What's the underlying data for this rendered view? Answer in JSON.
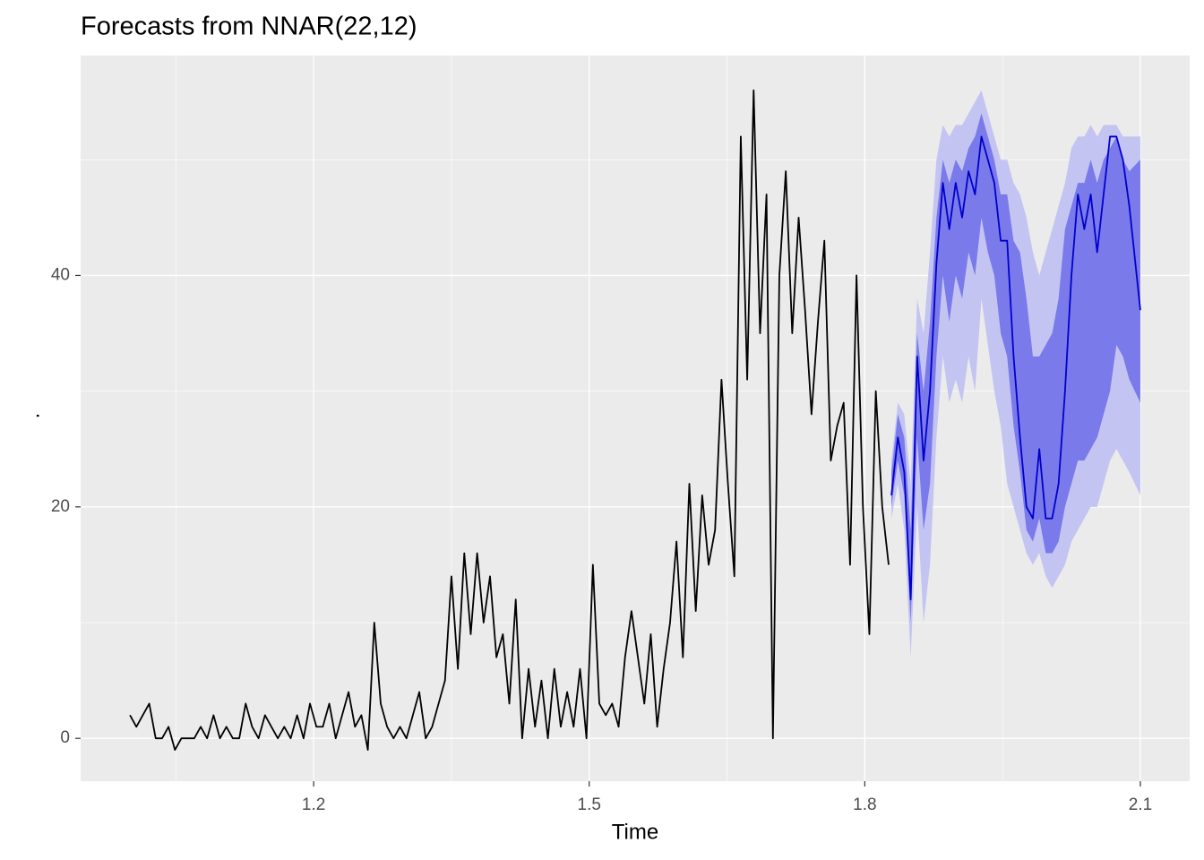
{
  "chart_data": {
    "type": "line",
    "title": "Forecasts from NNAR(22,12)",
    "x_label": "Time",
    "y_label": ".",
    "xlim": [
      0.9463,
      2.1537
    ],
    "ylim": [
      -3.7,
      59
    ],
    "xticks": [
      1.2,
      1.5,
      1.8,
      2.1
    ],
    "yticks": [
      0,
      20,
      40
    ],
    "grid": true,
    "series": [
      {
        "color": "#000000",
        "x": [
          1.0,
          1.007,
          1.014,
          1.021,
          1.028,
          1.035,
          1.042,
          1.049,
          1.056,
          1.063,
          1.07,
          1.077,
          1.084,
          1.091,
          1.098,
          1.105,
          1.112,
          1.119,
          1.126,
          1.133,
          1.14,
          1.147,
          1.154,
          1.161,
          1.168,
          1.175,
          1.182,
          1.189,
          1.196,
          1.203,
          1.21,
          1.217,
          1.224,
          1.231,
          1.238,
          1.245,
          1.252,
          1.259,
          1.266,
          1.273,
          1.28,
          1.287,
          1.294,
          1.301,
          1.308,
          1.315,
          1.322,
          1.329,
          1.336,
          1.343,
          1.35,
          1.357,
          1.364,
          1.371,
          1.378,
          1.385,
          1.392,
          1.399,
          1.406,
          1.413,
          1.42,
          1.427,
          1.434,
          1.441,
          1.448,
          1.455,
          1.462,
          1.469,
          1.476,
          1.483,
          1.49,
          1.497,
          1.504,
          1.511,
          1.518,
          1.525,
          1.532,
          1.539,
          1.546,
          1.553,
          1.56,
          1.567,
          1.574,
          1.581,
          1.588,
          1.595,
          1.602,
          1.609,
          1.616,
          1.623,
          1.63,
          1.637,
          1.644,
          1.651,
          1.658,
          1.665,
          1.672,
          1.679,
          1.686,
          1.693,
          1.7,
          1.707,
          1.714,
          1.721,
          1.728,
          1.735,
          1.742,
          1.749,
          1.756,
          1.763,
          1.77,
          1.777,
          1.784,
          1.791,
          1.798,
          1.805,
          1.812,
          1.819,
          1.826
        ],
        "values": [
          2,
          1,
          2,
          3,
          0,
          0,
          1,
          -1,
          0,
          0,
          0,
          1,
          0,
          2,
          0,
          1,
          0,
          0,
          3,
          1,
          0,
          2,
          1,
          0,
          1,
          0,
          2,
          0,
          3,
          1,
          1,
          3,
          0,
          2,
          4,
          1,
          2,
          -1,
          10,
          3,
          1,
          0,
          1,
          0,
          2,
          4,
          0,
          1,
          3,
          5,
          14,
          6,
          16,
          9,
          16,
          10,
          14,
          7,
          9,
          3,
          12,
          0,
          6,
          1,
          5,
          0,
          6,
          1,
          4,
          1,
          6,
          0,
          15,
          3,
          2,
          3,
          1,
          7,
          11,
          7,
          3,
          9,
          1,
          6,
          10,
          17,
          7,
          22,
          11,
          21,
          15,
          18,
          31,
          22,
          14,
          52,
          31,
          56,
          35,
          47,
          0,
          40,
          49,
          35,
          45,
          37,
          28,
          36,
          43,
          24,
          27,
          29,
          15,
          40,
          20,
          9,
          30,
          20,
          15
        ]
      },
      {
        "color": "#0000cc",
        "x": [
          1.829,
          1.836,
          1.843,
          1.85,
          1.857,
          1.864,
          1.871,
          1.878,
          1.885,
          1.892,
          1.899,
          1.906,
          1.913,
          1.92,
          1.927,
          1.934,
          1.941,
          1.948,
          1.955,
          1.962,
          1.969,
          1.976,
          1.983,
          1.99,
          1.997,
          2.004,
          2.011,
          2.018,
          2.025,
          2.032,
          2.039,
          2.046,
          2.053,
          2.06,
          2.067,
          2.074,
          2.081,
          2.088,
          2.1
        ],
        "values": [
          21,
          26,
          23,
          12,
          33,
          24,
          30,
          41,
          48,
          44,
          48,
          45,
          49,
          47,
          52,
          50,
          48,
          43,
          43,
          33,
          26,
          20,
          19,
          25,
          19,
          19,
          22,
          30,
          40,
          47,
          44,
          47,
          42,
          47,
          52,
          52,
          50,
          46,
          37
        ]
      }
    ],
    "bands": [
      {
        "color": "#c4c4f2",
        "lower": [
          19,
          22,
          18,
          7,
          20,
          10,
          15,
          26,
          33,
          29,
          31,
          29,
          33,
          30,
          38,
          34,
          30,
          27,
          22,
          20,
          18,
          16,
          15,
          16,
          14,
          13,
          14,
          15,
          17,
          18,
          19,
          20,
          20,
          22,
          24,
          25,
          24,
          23,
          21
        ],
        "upper": [
          24,
          29,
          28,
          22,
          38,
          35,
          42,
          50,
          53,
          52,
          53,
          53,
          54,
          55,
          56,
          54,
          52,
          50,
          50,
          48,
          47,
          45,
          42,
          40,
          42,
          44,
          46,
          48,
          51,
          52,
          52,
          53,
          52,
          53,
          53,
          53,
          52,
          52,
          52
        ]
      },
      {
        "color": "#7a7aea",
        "lower": [
          20,
          24,
          21,
          10,
          26,
          18,
          22,
          33,
          40,
          36,
          40,
          38,
          42,
          40,
          45,
          42,
          40,
          35,
          33,
          27,
          23,
          18,
          17,
          19,
          16,
          16,
          17,
          20,
          22,
          24,
          24,
          25,
          26,
          28,
          30,
          34,
          33,
          31,
          29
        ],
        "upper": [
          23,
          28,
          26,
          18,
          35,
          30,
          36,
          45,
          50,
          48,
          50,
          49,
          51,
          52,
          54,
          52,
          50,
          47,
          47,
          43,
          42,
          38,
          33,
          33,
          34,
          35,
          38,
          44,
          46,
          48,
          48,
          50,
          48,
          50,
          51,
          52,
          50,
          49,
          50
        ]
      }
    ]
  }
}
